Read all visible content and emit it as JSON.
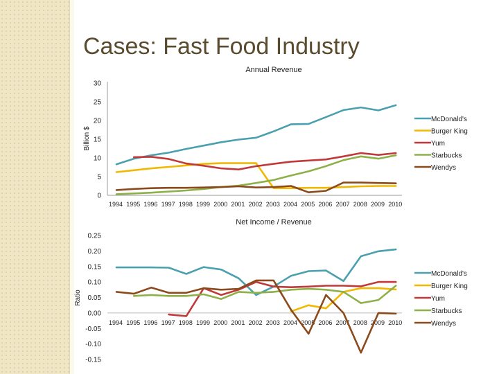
{
  "slide": {
    "title": "Cases: Fast Food Industry"
  },
  "colors": {
    "mcdonalds": "#4aa0ae",
    "burger_king": "#f0b800",
    "yum": "#c0393b",
    "starbucks": "#8eb048",
    "wendys": "#8b4a1c"
  },
  "chart_data": [
    {
      "type": "line",
      "title": "Annual Revenue",
      "xlabel": "",
      "ylabel": "Billion $",
      "ylim": [
        0,
        30
      ],
      "yticks": [
        0,
        5,
        10,
        15,
        20,
        25,
        30
      ],
      "categories": [
        "1994",
        "1995",
        "1996",
        "1997",
        "1998",
        "1999",
        "2000",
        "2001",
        "2002",
        "2003",
        "2004",
        "2005",
        "2006",
        "2007",
        "2008",
        "2009",
        "2010"
      ],
      "legend_position": "right",
      "series": [
        {
          "key": "mcdonalds",
          "name": "McDonald's",
          "values": [
            8.3,
            9.8,
            10.7,
            11.4,
            12.4,
            13.3,
            14.2,
            14.9,
            15.4,
            17.1,
            19.0,
            19.1,
            20.9,
            22.8,
            23.5,
            22.7,
            24.1
          ]
        },
        {
          "key": "burger_king",
          "name": "Burger King",
          "values": [
            6.2,
            6.7,
            7.2,
            7.6,
            8.0,
            8.4,
            8.6,
            8.6,
            8.6,
            1.9,
            1.9,
            2.0,
            2.0,
            2.2,
            2.4,
            2.5,
            2.5
          ]
        },
        {
          "key": "yum",
          "name": "Yum",
          "values": [
            null,
            10.2,
            10.3,
            9.7,
            8.5,
            7.9,
            7.2,
            6.9,
            7.8,
            8.4,
            9.0,
            9.3,
            9.6,
            10.4,
            11.3,
            10.8,
            11.3
          ]
        },
        {
          "key": "starbucks",
          "name": "Starbucks",
          "values": [
            0.3,
            0.5,
            0.7,
            1.0,
            1.3,
            1.7,
            2.2,
            2.6,
            3.3,
            4.1,
            5.3,
            6.4,
            7.8,
            9.4,
            10.4,
            9.8,
            10.7
          ]
        },
        {
          "key": "wendys",
          "name": "Wendys",
          "values": [
            1.4,
            1.7,
            1.9,
            2.0,
            2.0,
            2.1,
            2.2,
            2.4,
            2.1,
            2.2,
            2.5,
            0.8,
            1.2,
            3.4,
            3.4,
            3.3,
            3.2
          ]
        }
      ]
    },
    {
      "type": "line",
      "title": "Net Income / Revenue",
      "xlabel": "",
      "ylabel": "Ratio",
      "ylim": [
        -0.15,
        0.25
      ],
      "yticks": [
        "0.25",
        "0.20",
        "0.15",
        "0.10",
        "0.05",
        "0.00",
        "-0.05",
        "-0.10",
        "-0.15"
      ],
      "categories": [
        "1994",
        "1995",
        "1996",
        "1997",
        "1998",
        "1999",
        "2000",
        "2001",
        "2002",
        "2003",
        "2004",
        "2005",
        "2006",
        "2007",
        "2008",
        "2009",
        "2010"
      ],
      "legend_position": "right",
      "series": [
        {
          "key": "mcdonalds",
          "name": "McDonald's",
          "values": [
            0.147,
            0.147,
            0.147,
            0.146,
            0.126,
            0.148,
            0.14,
            0.112,
            0.058,
            0.085,
            0.12,
            0.135,
            0.137,
            0.103,
            0.183,
            0.199,
            0.205
          ]
        },
        {
          "key": "burger_king",
          "name": "Burger King",
          "values": [
            null,
            null,
            null,
            null,
            null,
            null,
            null,
            null,
            null,
            null,
            0.005,
            0.025,
            0.015,
            0.068,
            0.08,
            0.08,
            0.076
          ]
        },
        {
          "key": "yum",
          "name": "Yum",
          "values": [
            null,
            null,
            null,
            -0.005,
            -0.01,
            0.08,
            0.058,
            0.075,
            0.1,
            0.085,
            0.083,
            0.085,
            0.088,
            0.088,
            0.086,
            0.1,
            0.1
          ]
        },
        {
          "key": "starbucks",
          "name": "Starbucks",
          "values": [
            null,
            0.055,
            0.058,
            0.055,
            0.055,
            0.06,
            0.045,
            0.068,
            0.065,
            0.068,
            0.075,
            0.078,
            0.075,
            0.068,
            0.032,
            0.042,
            0.088
          ]
        },
        {
          "key": "wendys",
          "name": "Wendys",
          "values": [
            0.068,
            0.062,
            0.082,
            0.065,
            0.065,
            0.08,
            0.075,
            0.078,
            0.105,
            0.105,
            0.01,
            -0.067,
            0.058,
            0.0,
            -0.128,
            0.0,
            -0.002
          ]
        }
      ]
    }
  ]
}
